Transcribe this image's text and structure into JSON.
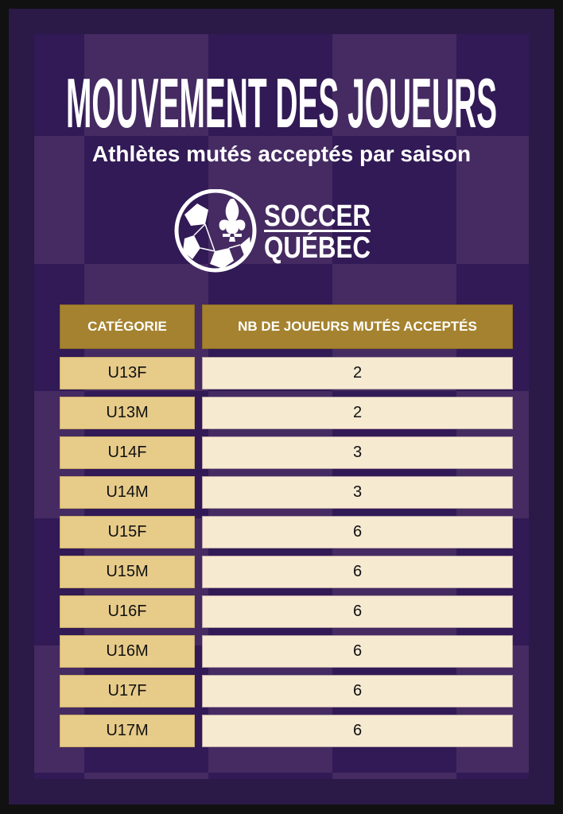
{
  "title": "MOUVEMENT DES JOUEURS",
  "subtitle": "Athlètes mutés acceptés par saison",
  "logo": {
    "line1": "SOCCER",
    "line2": "QUÉBEC",
    "icon": "soccer-ball-fleur-de-lis-icon"
  },
  "colors": {
    "background": "#2b1a47",
    "checker_light": "#452b62",
    "checker_dark": "#311a55",
    "header": "#a5822f",
    "category_cell": "#e7cb89",
    "value_cell": "#f6ead1"
  },
  "table": {
    "headers": [
      "CATÉGORIE",
      "NB DE JOUEURS MUTÉS ACCEPTÉS"
    ],
    "rows": [
      {
        "category": "U13F",
        "value": "2"
      },
      {
        "category": "U13M",
        "value": "2"
      },
      {
        "category": "U14F",
        "value": "3"
      },
      {
        "category": "U14M",
        "value": "3"
      },
      {
        "category": "U15F",
        "value": "6"
      },
      {
        "category": "U15M",
        "value": "6"
      },
      {
        "category": "U16F",
        "value": "6"
      },
      {
        "category": "U16M",
        "value": "6"
      },
      {
        "category": "U17F",
        "value": "6"
      },
      {
        "category": "U17M",
        "value": "6"
      }
    ]
  }
}
